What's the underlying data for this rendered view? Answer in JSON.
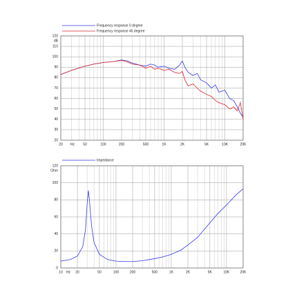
{
  "chart_data": [
    {
      "type": "line",
      "xscale": "log",
      "grid": true,
      "minor_grid": true,
      "legend": "top-left",
      "x_unit": "Hz",
      "y_unit": "dB",
      "xlim": [
        20,
        20000
      ],
      "ylim": [
        20,
        120
      ],
      "xticks": [
        20,
        50,
        100,
        200,
        500,
        {
          "value": 1000,
          "label": "1K"
        },
        {
          "value": 2000,
          "label": "2K"
        },
        {
          "value": 5000,
          "label": "5K"
        },
        {
          "value": 10000,
          "label": "10K"
        },
        {
          "value": 20000,
          "label": "20K"
        }
      ],
      "yticks": [
        20,
        30,
        40,
        50,
        60,
        70,
        80,
        90,
        100,
        110,
        120
      ],
      "x": [
        20,
        30,
        50,
        70,
        100,
        150,
        200,
        250,
        300,
        400,
        500,
        600,
        700,
        800,
        1000,
        1200,
        1500,
        1800,
        2000,
        2200,
        2500,
        3000,
        3500,
        4000,
        5000,
        6000,
        7000,
        8000,
        10000,
        12000,
        14000,
        16000,
        18000,
        20000
      ],
      "series": [
        {
          "name": "Frequency response 0 degree",
          "color": "#3535e8",
          "values": [
            83,
            87,
            91,
            93,
            94.5,
            95.5,
            97,
            96,
            94,
            92,
            91,
            93,
            92,
            90,
            91,
            89,
            88,
            92,
            96,
            90,
            85,
            82,
            84,
            78,
            75,
            70,
            73,
            66,
            68,
            60,
            58,
            52,
            46,
            42
          ]
        },
        {
          "name": "Frequency response 45 degree",
          "color": "#e0202a",
          "values": [
            83,
            87,
            91,
            93,
            94.5,
            95.5,
            96.5,
            95,
            93,
            92,
            89,
            91,
            88,
            89,
            87,
            88,
            85,
            84,
            86,
            78,
            72,
            74,
            70,
            67,
            64,
            62,
            58,
            56,
            54,
            50,
            52,
            48,
            56,
            40
          ]
        }
      ]
    },
    {
      "type": "line",
      "xscale": "log",
      "grid": true,
      "minor_grid": true,
      "legend": "top-left",
      "x_unit": "Hz",
      "y_unit": "Ohm",
      "xlim": [
        10,
        20000
      ],
      "ylim": [
        0,
        120
      ],
      "xticks": [
        10,
        20,
        50,
        100,
        200,
        500,
        {
          "value": 1000,
          "label": "1K"
        },
        {
          "value": 2000,
          "label": "2K"
        },
        {
          "value": 5000,
          "label": "5K"
        },
        {
          "value": 10000,
          "label": "10K"
        },
        {
          "value": 20000,
          "label": "20K"
        }
      ],
      "yticks": [
        0,
        20,
        40,
        60,
        80,
        100,
        120
      ],
      "x": [
        10,
        15,
        20,
        25,
        28,
        30,
        31.6,
        33,
        36,
        40,
        50,
        70,
        100,
        150,
        200,
        300,
        500,
        700,
        1000,
        1500,
        2000,
        3000,
        5000,
        7000,
        10000,
        15000,
        20000
      ],
      "series": [
        {
          "name": "Impedance",
          "color": "#3535e8",
          "values": [
            8,
            10,
            14,
            25,
            45,
            75,
            91,
            80,
            50,
            30,
            16,
            10,
            8,
            7.5,
            7.5,
            8.5,
            11,
            13,
            16,
            21,
            27,
            36,
            53,
            64,
            74,
            86,
            93
          ]
        }
      ]
    }
  ]
}
